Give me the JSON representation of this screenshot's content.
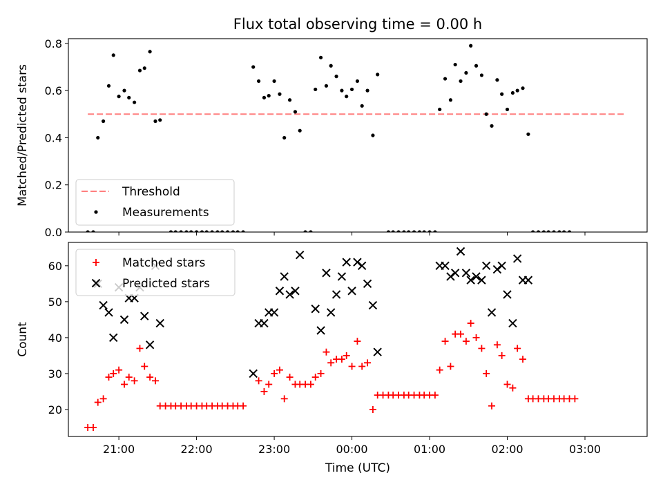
{
  "figure": {
    "title": "Flux total observing time = 0.00 h"
  },
  "chart_data": [
    {
      "type": "scatter",
      "title": "Flux total observing time = 0.00 h",
      "xlabel": "",
      "ylabel": "Matched/Predicted stars",
      "x_unit": "hours since 00:00 UTC (negative = previous day)",
      "xlim": [
        -3.65,
        3.8
      ],
      "ylim": [
        0,
        0.82
      ],
      "yticks": [
        "0.0",
        "0.2",
        "0.4",
        "0.6",
        "0.8"
      ],
      "legend_position": "lower left",
      "threshold": {
        "name": "Threshold",
        "value": 0.5,
        "x_range": [
          -3.4,
          3.5
        ],
        "color": "#ff7f7f",
        "style": "dashed"
      },
      "series": [
        {
          "name": "Measurements",
          "color": "#000000",
          "marker": "dot",
          "points": [
            [
              -3.4,
              0.0
            ],
            [
              -3.33,
              0.0
            ],
            [
              -3.27,
              0.4
            ],
            [
              -3.2,
              0.47
            ],
            [
              -3.13,
              0.62
            ],
            [
              -3.07,
              0.75
            ],
            [
              -3.0,
              0.575
            ],
            [
              -2.93,
              0.6
            ],
            [
              -2.87,
              0.57
            ],
            [
              -2.8,
              0.55
            ],
            [
              -2.73,
              0.685
            ],
            [
              -2.67,
              0.695
            ],
            [
              -2.6,
              0.765
            ],
            [
              -2.53,
              0.47
            ],
            [
              -2.47,
              0.475
            ],
            [
              -2.33,
              0.0
            ],
            [
              -2.27,
              0.0
            ],
            [
              -2.2,
              0.0
            ],
            [
              -2.13,
              0.0
            ],
            [
              -2.07,
              0.0
            ],
            [
              -2.0,
              0.0
            ],
            [
              -1.93,
              0.0
            ],
            [
              -1.87,
              0.0
            ],
            [
              -1.8,
              0.0
            ],
            [
              -1.73,
              0.0
            ],
            [
              -1.67,
              0.0
            ],
            [
              -1.6,
              0.0
            ],
            [
              -1.53,
              0.0
            ],
            [
              -1.47,
              0.0
            ],
            [
              -1.4,
              0.0
            ],
            [
              -1.27,
              0.7
            ],
            [
              -1.2,
              0.64
            ],
            [
              -1.13,
              0.57
            ],
            [
              -1.07,
              0.578
            ],
            [
              -1.0,
              0.64
            ],
            [
              -0.93,
              0.585
            ],
            [
              -0.87,
              0.4
            ],
            [
              -0.8,
              0.56
            ],
            [
              -0.73,
              0.51
            ],
            [
              -0.67,
              0.43
            ],
            [
              -0.6,
              0.0
            ],
            [
              -0.53,
              0.0
            ],
            [
              -0.47,
              0.605
            ],
            [
              -0.4,
              0.74
            ],
            [
              -0.33,
              0.62
            ],
            [
              -0.27,
              0.705
            ],
            [
              -0.2,
              0.66
            ],
            [
              -0.13,
              0.6
            ],
            [
              -0.07,
              0.575
            ],
            [
              0.0,
              0.605
            ],
            [
              0.07,
              0.64
            ],
            [
              0.13,
              0.535
            ],
            [
              0.2,
              0.6
            ],
            [
              0.27,
              0.41
            ],
            [
              0.33,
              0.668
            ],
            [
              0.47,
              0.0
            ],
            [
              0.53,
              0.0
            ],
            [
              0.6,
              0.0
            ],
            [
              0.67,
              0.0
            ],
            [
              0.73,
              0.0
            ],
            [
              0.8,
              0.0
            ],
            [
              0.87,
              0.0
            ],
            [
              0.93,
              0.0
            ],
            [
              1.0,
              0.0
            ],
            [
              1.07,
              0.0
            ],
            [
              1.13,
              0.52
            ],
            [
              1.2,
              0.65
            ],
            [
              1.27,
              0.56
            ],
            [
              1.33,
              0.71
            ],
            [
              1.4,
              0.64
            ],
            [
              1.47,
              0.675
            ],
            [
              1.53,
              0.79
            ],
            [
              1.6,
              0.705
            ],
            [
              1.67,
              0.665
            ],
            [
              1.73,
              0.5
            ],
            [
              1.8,
              0.45
            ],
            [
              1.87,
              0.645
            ],
            [
              1.93,
              0.585
            ],
            [
              2.0,
              0.52
            ],
            [
              2.07,
              0.59
            ],
            [
              2.13,
              0.6
            ],
            [
              2.2,
              0.61
            ],
            [
              2.27,
              0.415
            ],
            [
              2.33,
              0.0
            ],
            [
              2.4,
              0.0
            ],
            [
              2.47,
              0.0
            ],
            [
              2.53,
              0.0
            ],
            [
              2.6,
              0.0
            ],
            [
              2.67,
              0.0
            ],
            [
              2.73,
              0.0
            ],
            [
              2.8,
              0.0
            ]
          ]
        }
      ]
    },
    {
      "type": "scatter",
      "title": "",
      "xlabel": "Time (UTC)",
      "ylabel": "Count",
      "x_unit": "hours since 00:00 UTC (negative = previous day)",
      "xlim": [
        -3.65,
        3.8
      ],
      "ylim": [
        12.5,
        66.5
      ],
      "yticks": [
        "20",
        "30",
        "40",
        "50",
        "60"
      ],
      "xticks": [
        "21:00",
        "22:00",
        "23:00",
        "00:00",
        "01:00",
        "02:00",
        "03:00"
      ],
      "legend_position": "upper left",
      "series": [
        {
          "name": "Matched stars",
          "color": "#ff0000",
          "marker": "plus",
          "points": [
            [
              -3.4,
              15
            ],
            [
              -3.33,
              15
            ],
            [
              -3.27,
              22
            ],
            [
              -3.2,
              23
            ],
            [
              -3.13,
              29
            ],
            [
              -3.07,
              30
            ],
            [
              -3.0,
              31
            ],
            [
              -2.93,
              27
            ],
            [
              -2.87,
              29
            ],
            [
              -2.8,
              28
            ],
            [
              -2.73,
              37
            ],
            [
              -2.67,
              32
            ],
            [
              -2.6,
              29
            ],
            [
              -2.53,
              28
            ],
            [
              -2.47,
              21
            ],
            [
              -2.4,
              21
            ],
            [
              -2.33,
              21
            ],
            [
              -2.27,
              21
            ],
            [
              -2.2,
              21
            ],
            [
              -2.13,
              21
            ],
            [
              -2.07,
              21
            ],
            [
              -2.0,
              21
            ],
            [
              -1.93,
              21
            ],
            [
              -1.87,
              21
            ],
            [
              -1.8,
              21
            ],
            [
              -1.73,
              21
            ],
            [
              -1.67,
              21
            ],
            [
              -1.6,
              21
            ],
            [
              -1.53,
              21
            ],
            [
              -1.47,
              21
            ],
            [
              -1.4,
              21
            ],
            [
              -1.2,
              28
            ],
            [
              -1.13,
              25
            ],
            [
              -1.07,
              27
            ],
            [
              -1.0,
              30
            ],
            [
              -0.93,
              31
            ],
            [
              -0.87,
              23
            ],
            [
              -0.8,
              29
            ],
            [
              -0.73,
              27
            ],
            [
              -0.67,
              27
            ],
            [
              -0.6,
              27
            ],
            [
              -0.53,
              27
            ],
            [
              -0.47,
              29
            ],
            [
              -0.4,
              30
            ],
            [
              -0.33,
              36
            ],
            [
              -0.27,
              33
            ],
            [
              -0.2,
              34
            ],
            [
              -0.13,
              34
            ],
            [
              -0.07,
              35
            ],
            [
              0.0,
              32
            ],
            [
              0.07,
              39
            ],
            [
              0.13,
              32
            ],
            [
              0.2,
              33
            ],
            [
              0.27,
              20
            ],
            [
              0.33,
              24
            ],
            [
              0.4,
              24
            ],
            [
              0.47,
              24
            ],
            [
              0.53,
              24
            ],
            [
              0.6,
              24
            ],
            [
              0.67,
              24
            ],
            [
              0.73,
              24
            ],
            [
              0.8,
              24
            ],
            [
              0.87,
              24
            ],
            [
              0.93,
              24
            ],
            [
              1.0,
              24
            ],
            [
              1.07,
              24
            ],
            [
              1.13,
              31
            ],
            [
              1.2,
              39
            ],
            [
              1.27,
              32
            ],
            [
              1.33,
              41
            ],
            [
              1.4,
              41
            ],
            [
              1.47,
              39
            ],
            [
              1.53,
              44
            ],
            [
              1.6,
              40
            ],
            [
              1.67,
              37
            ],
            [
              1.73,
              30
            ],
            [
              1.8,
              21
            ],
            [
              1.87,
              38
            ],
            [
              1.93,
              35
            ],
            [
              2.0,
              27
            ],
            [
              2.07,
              26
            ],
            [
              2.13,
              37
            ],
            [
              2.2,
              34
            ],
            [
              2.27,
              23
            ],
            [
              2.33,
              23
            ],
            [
              2.4,
              23
            ],
            [
              2.47,
              23
            ],
            [
              2.53,
              23
            ],
            [
              2.6,
              23
            ],
            [
              2.67,
              23
            ],
            [
              2.73,
              23
            ],
            [
              2.8,
              23
            ],
            [
              2.87,
              23
            ]
          ]
        },
        {
          "name": "Predicted stars",
          "color": "#000000",
          "marker": "x",
          "points": [
            [
              -3.27,
              55
            ],
            [
              -3.2,
              49
            ],
            [
              -3.13,
              47
            ],
            [
              -3.07,
              40
            ],
            [
              -3.0,
              54
            ],
            [
              -2.93,
              45
            ],
            [
              -2.87,
              51
            ],
            [
              -2.8,
              51
            ],
            [
              -2.73,
              54
            ],
            [
              -2.67,
              46
            ],
            [
              -2.6,
              38
            ],
            [
              -2.53,
              60
            ],
            [
              -2.47,
              44
            ],
            [
              -1.27,
              30
            ],
            [
              -1.2,
              44
            ],
            [
              -1.13,
              44
            ],
            [
              -1.07,
              47
            ],
            [
              -1.0,
              47
            ],
            [
              -0.93,
              53
            ],
            [
              -0.87,
              57
            ],
            [
              -0.8,
              52
            ],
            [
              -0.73,
              53
            ],
            [
              -0.67,
              63
            ],
            [
              -0.47,
              48
            ],
            [
              -0.4,
              42
            ],
            [
              -0.33,
              58
            ],
            [
              -0.27,
              47
            ],
            [
              -0.2,
              52
            ],
            [
              -0.13,
              57
            ],
            [
              -0.07,
              61
            ],
            [
              0.0,
              53
            ],
            [
              0.07,
              61
            ],
            [
              0.13,
              60
            ],
            [
              0.2,
              55
            ],
            [
              0.27,
              49
            ],
            [
              0.33,
              36
            ],
            [
              1.13,
              60
            ],
            [
              1.2,
              60
            ],
            [
              1.27,
              57
            ],
            [
              1.33,
              58
            ],
            [
              1.4,
              64
            ],
            [
              1.47,
              58
            ],
            [
              1.53,
              56
            ],
            [
              1.6,
              57
            ],
            [
              1.67,
              56
            ],
            [
              1.73,
              60
            ],
            [
              1.8,
              47
            ],
            [
              1.87,
              59
            ],
            [
              1.93,
              60
            ],
            [
              2.0,
              52
            ],
            [
              2.07,
              44
            ],
            [
              2.13,
              62
            ],
            [
              2.2,
              56
            ],
            [
              2.27,
              56
            ]
          ]
        }
      ]
    }
  ]
}
